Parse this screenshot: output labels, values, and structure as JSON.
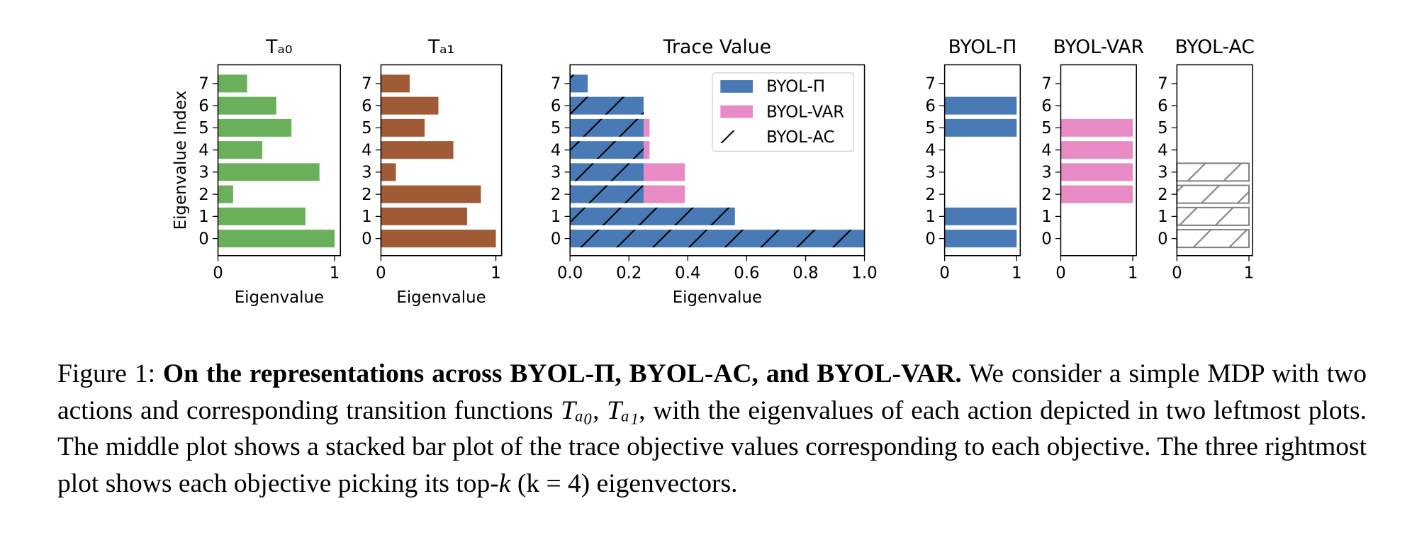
{
  "chart_data": [
    {
      "type": "barh",
      "title": "Tₐ₀",
      "ylabel": "Eigenvalue Index",
      "xlabel": "Eigenvalue",
      "categories": [
        "0",
        "1",
        "2",
        "3",
        "4",
        "5",
        "6",
        "7"
      ],
      "values": [
        1.0,
        0.75,
        0.13,
        0.87,
        0.38,
        0.63,
        0.5,
        0.25
      ],
      "color": "#6aaf5a",
      "xlim": [
        0,
        1.05
      ],
      "xticks": [
        0,
        1
      ]
    },
    {
      "type": "barh",
      "title": "Tₐ₁",
      "xlabel": "Eigenvalue",
      "categories": [
        "0",
        "1",
        "2",
        "3",
        "4",
        "5",
        "6",
        "7"
      ],
      "values": [
        1.0,
        0.75,
        0.87,
        0.13,
        0.63,
        0.38,
        0.5,
        0.25
      ],
      "color": "#a05a35",
      "xlim": [
        0,
        1.05
      ],
      "xticks": [
        0,
        1
      ]
    },
    {
      "type": "barh",
      "title": "Trace Value",
      "xlabel": "Eigenvalue",
      "categories": [
        "0",
        "1",
        "2",
        "3",
        "4",
        "5",
        "6",
        "7"
      ],
      "series": [
        {
          "name": "BYOL-Π",
          "color": "#4a7ab5",
          "values": [
            1.0,
            0.56,
            0.25,
            0.25,
            0.25,
            0.25,
            0.25,
            0.06
          ]
        },
        {
          "name": "BYOL-VAR",
          "color": "#e88bc4",
          "values": [
            0,
            0,
            0.14,
            0.14,
            0.02,
            0.02,
            0,
            0
          ]
        },
        {
          "name": "BYOL-AC",
          "color": "#000000",
          "hatch": "/",
          "values": [
            1.0,
            0.56,
            0.25,
            0.25,
            0.25,
            0.25,
            0.25,
            0.06
          ]
        }
      ],
      "xlim": [
        0,
        1
      ],
      "xticks": [
        {
          "value": 0,
          "label": "0.0"
        },
        0.2,
        0.4,
        0.6,
        0.8,
        {
          "value": 1,
          "label": "1.0"
        }
      ],
      "legend": "upper right"
    },
    {
      "type": "barh",
      "title": "BYOL-Π",
      "categories": [
        "0",
        "1",
        "2",
        "3",
        "4",
        "5",
        "6",
        "7"
      ],
      "values": [
        1,
        1,
        0,
        0,
        0,
        1,
        1,
        0
      ],
      "color": "#4a7ab5",
      "xlim": [
        0,
        1.05
      ],
      "xticks": [
        0,
        1
      ]
    },
    {
      "type": "barh",
      "title": "BYOL-VAR",
      "categories": [
        "0",
        "1",
        "2",
        "3",
        "4",
        "5",
        "6",
        "7"
      ],
      "values": [
        0,
        0,
        1,
        1,
        1,
        1,
        0,
        0
      ],
      "color": "#e88bc4",
      "xlim": [
        0,
        1.05
      ],
      "xticks": [
        0,
        1
      ]
    },
    {
      "type": "barh",
      "title": "BYOL-AC",
      "categories": [
        "0",
        "1",
        "2",
        "3",
        "4",
        "5",
        "6",
        "7"
      ],
      "values": [
        1,
        1,
        1,
        1,
        0,
        0,
        0,
        0
      ],
      "color": "#808080",
      "hatch": "/",
      "outline": true,
      "xlim": [
        0,
        1.05
      ],
      "xticks": [
        0,
        1
      ]
    }
  ],
  "caption": {
    "label": "Figure 1:",
    "bold": "On the representations across BYOL-Π, BYOL-AC, and BYOL-VAR.",
    "text1": "We consider a simple MDP with two actions and corresponding transition functions",
    "math1": "Tₐ₀, Tₐ₁",
    "text2": ", with the eigenvalues of each action depicted in two leftmost plots. The middle plot shows a stacked bar plot of the trace objective values corresponding to each objective. The three rightmost plot shows each objective picking its top-",
    "math2": "k",
    "math3": "(k = 4)",
    "text3": "eigenvectors."
  }
}
